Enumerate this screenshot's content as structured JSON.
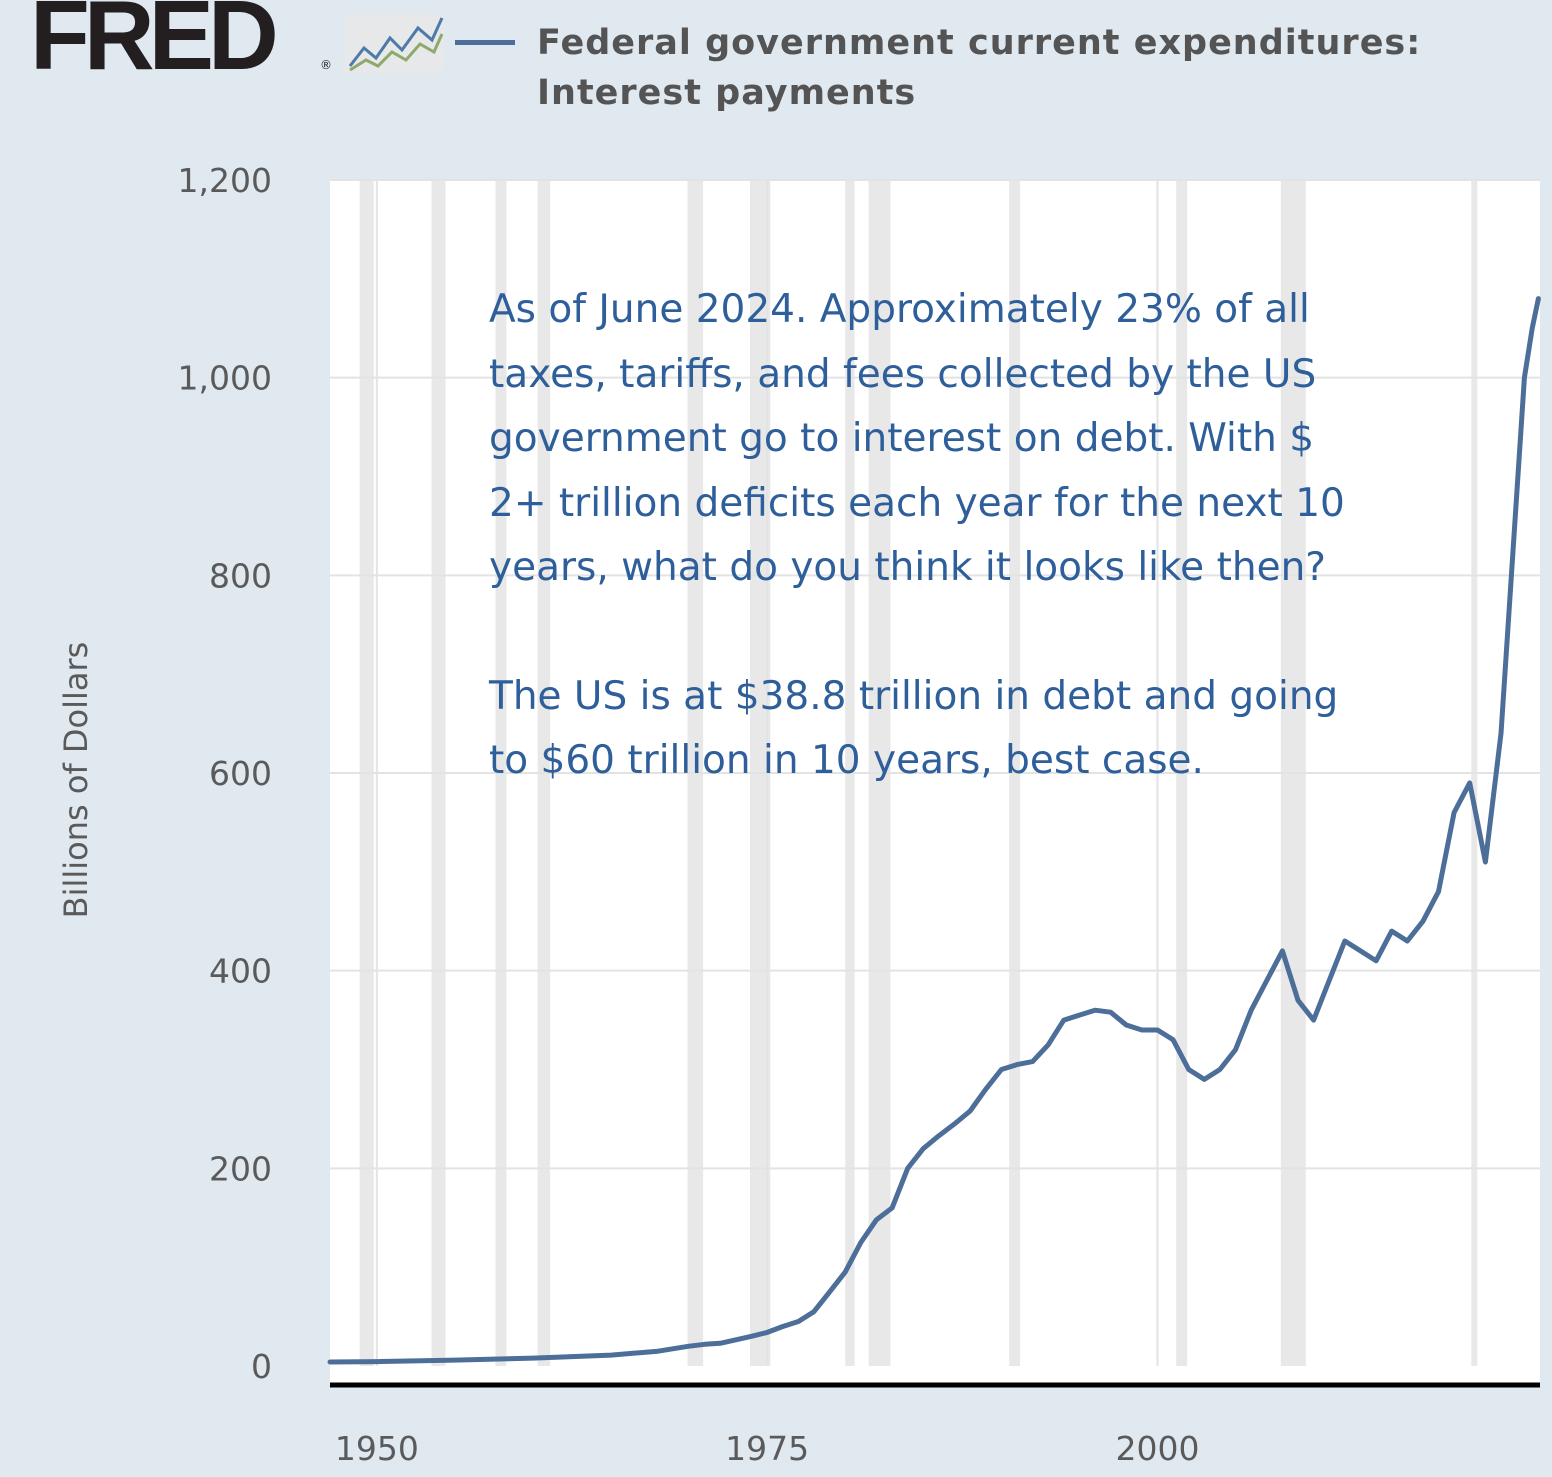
{
  "brand": {
    "name": "FRED",
    "registered_mark": "®",
    "icon": "trend-lines-icon",
    "icon_colors": [
      "#4d7aa8",
      "#8fa86b"
    ]
  },
  "legend": {
    "label": "Federal government current expenditures: Interest payments",
    "line_color": "#4d6e98"
  },
  "annotation": {
    "paragraph1": "As of June 2024. Approximately 23% of all taxes, tariffs, and fees collected by the US government go to interest on debt.  With $ 2+ trillion deficits each year for the next 10 years, what do you think it looks like then?",
    "paragraph2": "The US is at $38.8 trillion in debt and going to $60 trillion in 10 years, best case.",
    "color": "#2e5f9a"
  },
  "colors": {
    "background": "#e1e9f0",
    "plot_background": "#ffffff",
    "recession_shading": "#e8e8e8",
    "series": "#4d6e98"
  },
  "chart_data": {
    "type": "line",
    "title": "",
    "xlabel": "",
    "ylabel": "Billions of Dollars",
    "xlim": [
      1947,
      2024.5
    ],
    "ylim": [
      0,
      1200
    ],
    "y_ticks": [
      0,
      200,
      400,
      600,
      800,
      1000,
      1200
    ],
    "y_tick_labels": [
      "0",
      "200",
      "400",
      "600",
      "800",
      "1,000",
      "1,200"
    ],
    "x_ticks": [
      1950,
      1975,
      2000
    ],
    "x_tick_labels": [
      "1950",
      "1975",
      "2000"
    ],
    "grid": true,
    "recession_shading": true,
    "recessions": [
      [
        1948.9,
        1949.8
      ],
      [
        1953.5,
        1954.4
      ],
      [
        1957.6,
        1958.3
      ],
      [
        1960.3,
        1961.1
      ],
      [
        1969.9,
        1970.9
      ],
      [
        1973.9,
        1975.2
      ],
      [
        1980.0,
        1980.6
      ],
      [
        1981.5,
        1982.9
      ],
      [
        1990.5,
        1991.2
      ],
      [
        2001.2,
        2001.9
      ],
      [
        2007.9,
        2009.5
      ],
      [
        2020.1,
        2020.4
      ]
    ],
    "legend_position": "top",
    "series": [
      {
        "name": "Federal government current expenditures: Interest payments",
        "x": [
          1947,
          1950,
          1955,
          1960,
          1965,
          1968,
          1970,
          1971,
          1972,
          1974,
          1975,
          1976,
          1977,
          1978,
          1979,
          1980,
          1981,
          1982,
          1983,
          1984,
          1985,
          1986,
          1987,
          1988,
          1989,
          1990,
          1991,
          1992,
          1993,
          1994,
          1995,
          1996,
          1997,
          1998,
          1999,
          2000,
          2001,
          2002,
          2003,
          2004,
          2005,
          2006,
          2007,
          2008,
          2009,
          2010,
          2011,
          2012,
          2013,
          2014,
          2015,
          2016,
          2017,
          2018,
          2019,
          2020,
          2021,
          2022,
          2023,
          2023.5,
          2024,
          2024.4
        ],
        "values": [
          4,
          4.5,
          6,
          8,
          11,
          15,
          20,
          22,
          23,
          30,
          34,
          40,
          45,
          55,
          75,
          95,
          125,
          148,
          160,
          200,
          220,
          233,
          245,
          258,
          280,
          300,
          305,
          308,
          325,
          350,
          355,
          360,
          358,
          345,
          340,
          340,
          330,
          300,
          290,
          300,
          320,
          360,
          390,
          420,
          370,
          350,
          390,
          430,
          420,
          410,
          440,
          430,
          450,
          480,
          560,
          590,
          510,
          640,
          880,
          1000,
          1050,
          1080
        ]
      }
    ]
  }
}
